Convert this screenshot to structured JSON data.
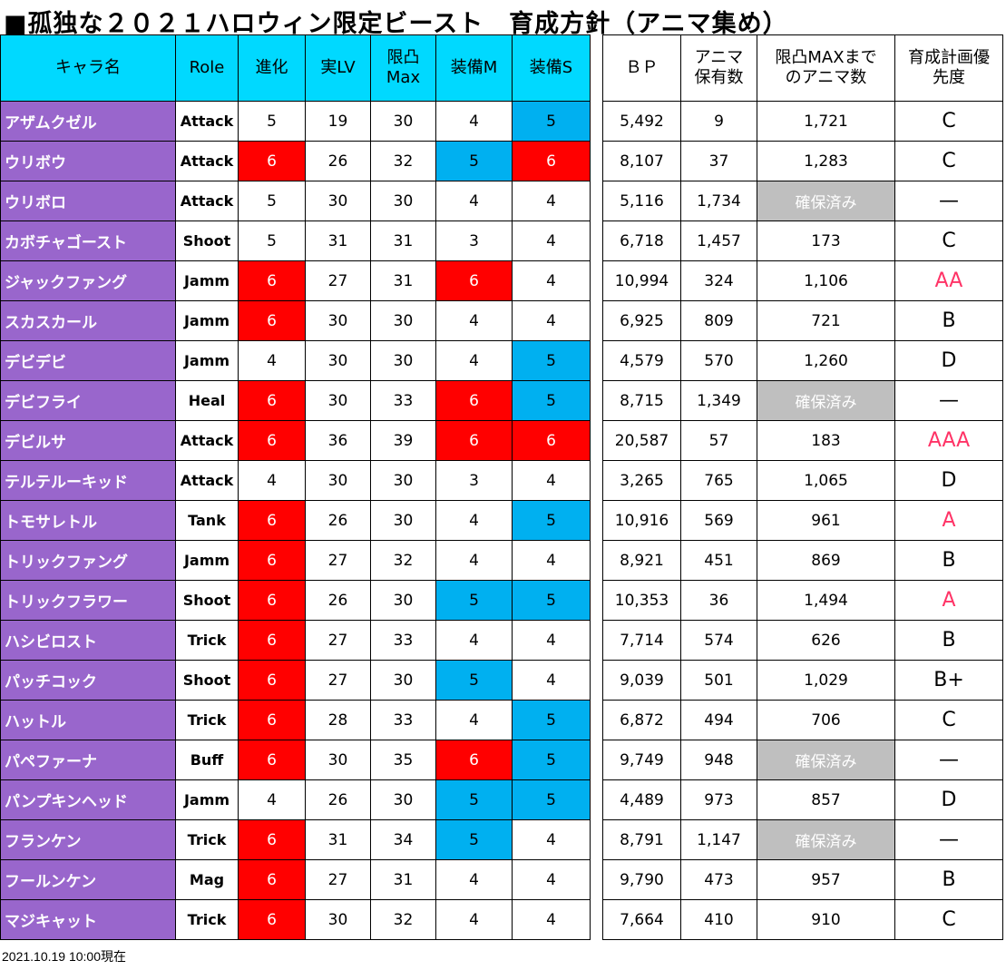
{
  "title": "■孤独な２０２１ハロウィン限定ビースト　育成方針（アニマ集め）",
  "left_headers": [
    "キャラ名",
    "Role",
    "進化",
    "実LV",
    "限凸\nMax",
    "装備M",
    "装備S"
  ],
  "right_headers": [
    "ＢＰ",
    "アニマ\n保有数",
    "限凸MAXまで\nのアニマ数",
    "育成計画優\n先度"
  ],
  "colors": {
    "header": "#00D9FF",
    "name": "#9966CC",
    "red": "#FF0000",
    "blue": "#00B0F0",
    "gray": "#BFBFBF",
    "pink": "#FF3366"
  },
  "rows": [
    {
      "name": "アザムクゼル",
      "role": "Attack",
      "evo": "5",
      "lv": "19",
      "max": "30",
      "m": "4",
      "s": "5",
      "bp": "5,492",
      "anima": "9",
      "need": "1,721",
      "prio": "C"
    },
    {
      "name": "ウリボウ",
      "role": "Attack",
      "evo": "6",
      "lv": "26",
      "max": "32",
      "m": "5",
      "s": "6",
      "bp": "8,107",
      "anima": "37",
      "need": "1,283",
      "prio": "C"
    },
    {
      "name": "ウリボロ",
      "role": "Attack",
      "evo": "5",
      "lv": "30",
      "max": "30",
      "m": "4",
      "s": "4",
      "bp": "5,116",
      "anima": "1,734",
      "need": "確保済み",
      "prio": "—"
    },
    {
      "name": "カボチャゴースト",
      "role": "Shoot",
      "evo": "5",
      "lv": "31",
      "max": "31",
      "m": "3",
      "s": "4",
      "bp": "6,718",
      "anima": "1,457",
      "need": "173",
      "prio": "C"
    },
    {
      "name": "ジャックファング",
      "role": "Jamm",
      "evo": "6",
      "lv": "27",
      "max": "31",
      "m": "6",
      "s": "4",
      "bp": "10,994",
      "anima": "324",
      "need": "1,106",
      "prio": "AA"
    },
    {
      "name": "スカスカール",
      "role": "Jamm",
      "evo": "6",
      "lv": "30",
      "max": "30",
      "m": "4",
      "s": "4",
      "bp": "6,925",
      "anima": "809",
      "need": "721",
      "prio": "B"
    },
    {
      "name": "デビデビ",
      "role": "Jamm",
      "evo": "4",
      "lv": "30",
      "max": "30",
      "m": "4",
      "s": "5",
      "bp": "4,579",
      "anima": "570",
      "need": "1,260",
      "prio": "D"
    },
    {
      "name": "デビフライ",
      "role": "Heal",
      "evo": "6",
      "lv": "30",
      "max": "33",
      "m": "6",
      "s": "5",
      "bp": "8,715",
      "anima": "1,349",
      "need": "確保済み",
      "prio": "—"
    },
    {
      "name": "デビルサ",
      "role": "Attack",
      "evo": "6",
      "lv": "36",
      "max": "39",
      "m": "6",
      "s": "6",
      "bp": "20,587",
      "anima": "57",
      "need": "183",
      "prio": "AAA"
    },
    {
      "name": "テルテルーキッド",
      "role": "Attack",
      "evo": "4",
      "lv": "30",
      "max": "30",
      "m": "3",
      "s": "4",
      "bp": "3,265",
      "anima": "765",
      "need": "1,065",
      "prio": "D"
    },
    {
      "name": "トモサレトル",
      "role": "Tank",
      "evo": "6",
      "lv": "26",
      "max": "30",
      "m": "4",
      "s": "5",
      "bp": "10,916",
      "anima": "569",
      "need": "961",
      "prio": "A"
    },
    {
      "name": "トリックファング",
      "role": "Jamm",
      "evo": "6",
      "lv": "27",
      "max": "32",
      "m": "4",
      "s": "4",
      "bp": "8,921",
      "anima": "451",
      "need": "869",
      "prio": "B"
    },
    {
      "name": "トリックフラワー",
      "role": "Shoot",
      "evo": "6",
      "lv": "26",
      "max": "30",
      "m": "5",
      "s": "5",
      "bp": "10,353",
      "anima": "36",
      "need": "1,494",
      "prio": "A"
    },
    {
      "name": "ハシビロスト",
      "role": "Trick",
      "evo": "6",
      "lv": "27",
      "max": "33",
      "m": "4",
      "s": "4",
      "bp": "7,714",
      "anima": "574",
      "need": "626",
      "prio": "B"
    },
    {
      "name": "パッチコック",
      "role": "Shoot",
      "evo": "6",
      "lv": "27",
      "max": "30",
      "m": "5",
      "s": "4",
      "bp": "9,039",
      "anima": "501",
      "need": "1,029",
      "prio": "B+"
    },
    {
      "name": "ハットル",
      "role": "Trick",
      "evo": "6",
      "lv": "28",
      "max": "33",
      "m": "4",
      "s": "5",
      "bp": "6,872",
      "anima": "494",
      "need": "706",
      "prio": "C"
    },
    {
      "name": "パペファーナ",
      "role": "Buff",
      "evo": "6",
      "lv": "30",
      "max": "35",
      "m": "6",
      "s": "5",
      "bp": "9,749",
      "anima": "948",
      "need": "確保済み",
      "prio": "—"
    },
    {
      "name": "パンプキンヘッド",
      "role": "Jamm",
      "evo": "4",
      "lv": "26",
      "max": "30",
      "m": "5",
      "s": "5",
      "bp": "4,489",
      "anima": "973",
      "need": "857",
      "prio": "D"
    },
    {
      "name": "フランケン",
      "role": "Trick",
      "evo": "6",
      "lv": "31",
      "max": "34",
      "m": "5",
      "s": "4",
      "bp": "8,791",
      "anima": "1,147",
      "need": "確保済み",
      "prio": "—"
    },
    {
      "name": "フールンケン",
      "role": "Mag",
      "evo": "6",
      "lv": "27",
      "max": "31",
      "m": "4",
      "s": "4",
      "bp": "9,790",
      "anima": "473",
      "need": "957",
      "prio": "B"
    },
    {
      "name": "マジキャット",
      "role": "Trick",
      "evo": "6",
      "lv": "30",
      "max": "32",
      "m": "4",
      "s": "4",
      "bp": "7,664",
      "anima": "410",
      "need": "910",
      "prio": "C"
    }
  ],
  "footer": "2021.10.19 10:00現在"
}
